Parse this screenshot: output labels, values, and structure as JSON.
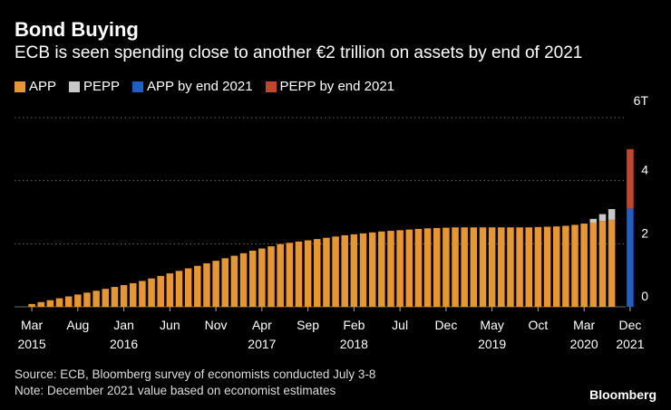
{
  "header": {
    "title": "Bond Buying",
    "subtitle": "ECB is seen spending close to another €2 trillion on assets by end of 2021"
  },
  "legend": [
    {
      "label": "APP",
      "color": "#e8962e"
    },
    {
      "label": "PEPP",
      "color": "#c8c8c8"
    },
    {
      "label": "APP by end 2021",
      "color": "#1f5fc8"
    },
    {
      "label": "PEPP by end 2021",
      "color": "#c4462a"
    }
  ],
  "footer": {
    "source": "Source: ECB, Bloomberg survey of economists conducted July 3-8",
    "note": "Note: December 2021 value based on economist estimates",
    "brand": "Bloomberg"
  },
  "chart_data": {
    "type": "bar",
    "stacked": true,
    "y_unit_label": "6T",
    "ylim": [
      0,
      6
    ],
    "yticks": [
      0,
      2,
      4,
      6
    ],
    "ytick_labels": [
      "0",
      "2",
      "4",
      "6T"
    ],
    "grid": true,
    "x_tick_labels": [
      {
        "month": "Mar",
        "year": "2015"
      },
      {
        "month": "Aug",
        "year": ""
      },
      {
        "month": "Jan",
        "year": "2016"
      },
      {
        "month": "Jun",
        "year": ""
      },
      {
        "month": "Nov",
        "year": ""
      },
      {
        "month": "Apr",
        "year": "2017"
      },
      {
        "month": "Sep",
        "year": ""
      },
      {
        "month": "Feb",
        "year": "2018"
      },
      {
        "month": "Jul",
        "year": ""
      },
      {
        "month": "Dec",
        "year": ""
      },
      {
        "month": "May",
        "year": "2019"
      },
      {
        "month": "Oct",
        "year": ""
      },
      {
        "month": "Mar",
        "year": "2020"
      },
      {
        "month": "Dec",
        "year": "2021"
      }
    ],
    "x_tick_bar_index": [
      0,
      5,
      10,
      15,
      20,
      25,
      30,
      35,
      40,
      45,
      50,
      55,
      60,
      65
    ],
    "series": [
      {
        "name": "APP",
        "color": "#e8962e",
        "values": [
          0.09,
          0.15,
          0.21,
          0.27,
          0.33,
          0.39,
          0.45,
          0.51,
          0.57,
          0.63,
          0.69,
          0.75,
          0.82,
          0.9,
          0.98,
          1.06,
          1.14,
          1.22,
          1.3,
          1.38,
          1.46,
          1.54,
          1.62,
          1.7,
          1.78,
          1.85,
          1.92,
          1.99,
          2.03,
          2.07,
          2.11,
          2.15,
          2.19,
          2.23,
          2.27,
          2.3,
          2.33,
          2.36,
          2.39,
          2.41,
          2.43,
          2.45,
          2.47,
          2.49,
          2.5,
          2.51,
          2.52,
          2.52,
          2.52,
          2.52,
          2.52,
          2.52,
          2.52,
          2.52,
          2.52,
          2.53,
          2.54,
          2.55,
          2.57,
          2.6,
          2.64,
          2.67,
          2.72,
          2.76,
          null,
          null
        ]
      },
      {
        "name": "PEPP",
        "color": "#c8c8c8",
        "values": [
          null,
          null,
          null,
          null,
          null,
          null,
          null,
          null,
          null,
          null,
          null,
          null,
          null,
          null,
          null,
          null,
          null,
          null,
          null,
          null,
          null,
          null,
          null,
          null,
          null,
          null,
          null,
          null,
          null,
          null,
          null,
          null,
          null,
          null,
          null,
          null,
          null,
          null,
          null,
          null,
          null,
          null,
          null,
          null,
          null,
          null,
          null,
          null,
          null,
          null,
          null,
          null,
          null,
          null,
          null,
          null,
          null,
          null,
          null,
          null,
          null,
          0.12,
          0.22,
          0.34,
          null,
          null
        ]
      },
      {
        "name": "APP by end 2021",
        "color": "#1f5fc8",
        "values": [
          null,
          null,
          null,
          null,
          null,
          null,
          null,
          null,
          null,
          null,
          null,
          null,
          null,
          null,
          null,
          null,
          null,
          null,
          null,
          null,
          null,
          null,
          null,
          null,
          null,
          null,
          null,
          null,
          null,
          null,
          null,
          null,
          null,
          null,
          null,
          null,
          null,
          null,
          null,
          null,
          null,
          null,
          null,
          null,
          null,
          null,
          null,
          null,
          null,
          null,
          null,
          null,
          null,
          null,
          null,
          null,
          null,
          null,
          null,
          null,
          null,
          null,
          null,
          null,
          null,
          3.12
        ]
      },
      {
        "name": "PEPP by end 2021",
        "color": "#c4462a",
        "values": [
          null,
          null,
          null,
          null,
          null,
          null,
          null,
          null,
          null,
          null,
          null,
          null,
          null,
          null,
          null,
          null,
          null,
          null,
          null,
          null,
          null,
          null,
          null,
          null,
          null,
          null,
          null,
          null,
          null,
          null,
          null,
          null,
          null,
          null,
          null,
          null,
          null,
          null,
          null,
          null,
          null,
          null,
          null,
          null,
          null,
          null,
          null,
          null,
          null,
          null,
          null,
          null,
          null,
          null,
          null,
          null,
          null,
          null,
          null,
          null,
          null,
          null,
          null,
          null,
          null,
          1.88
        ]
      }
    ]
  }
}
